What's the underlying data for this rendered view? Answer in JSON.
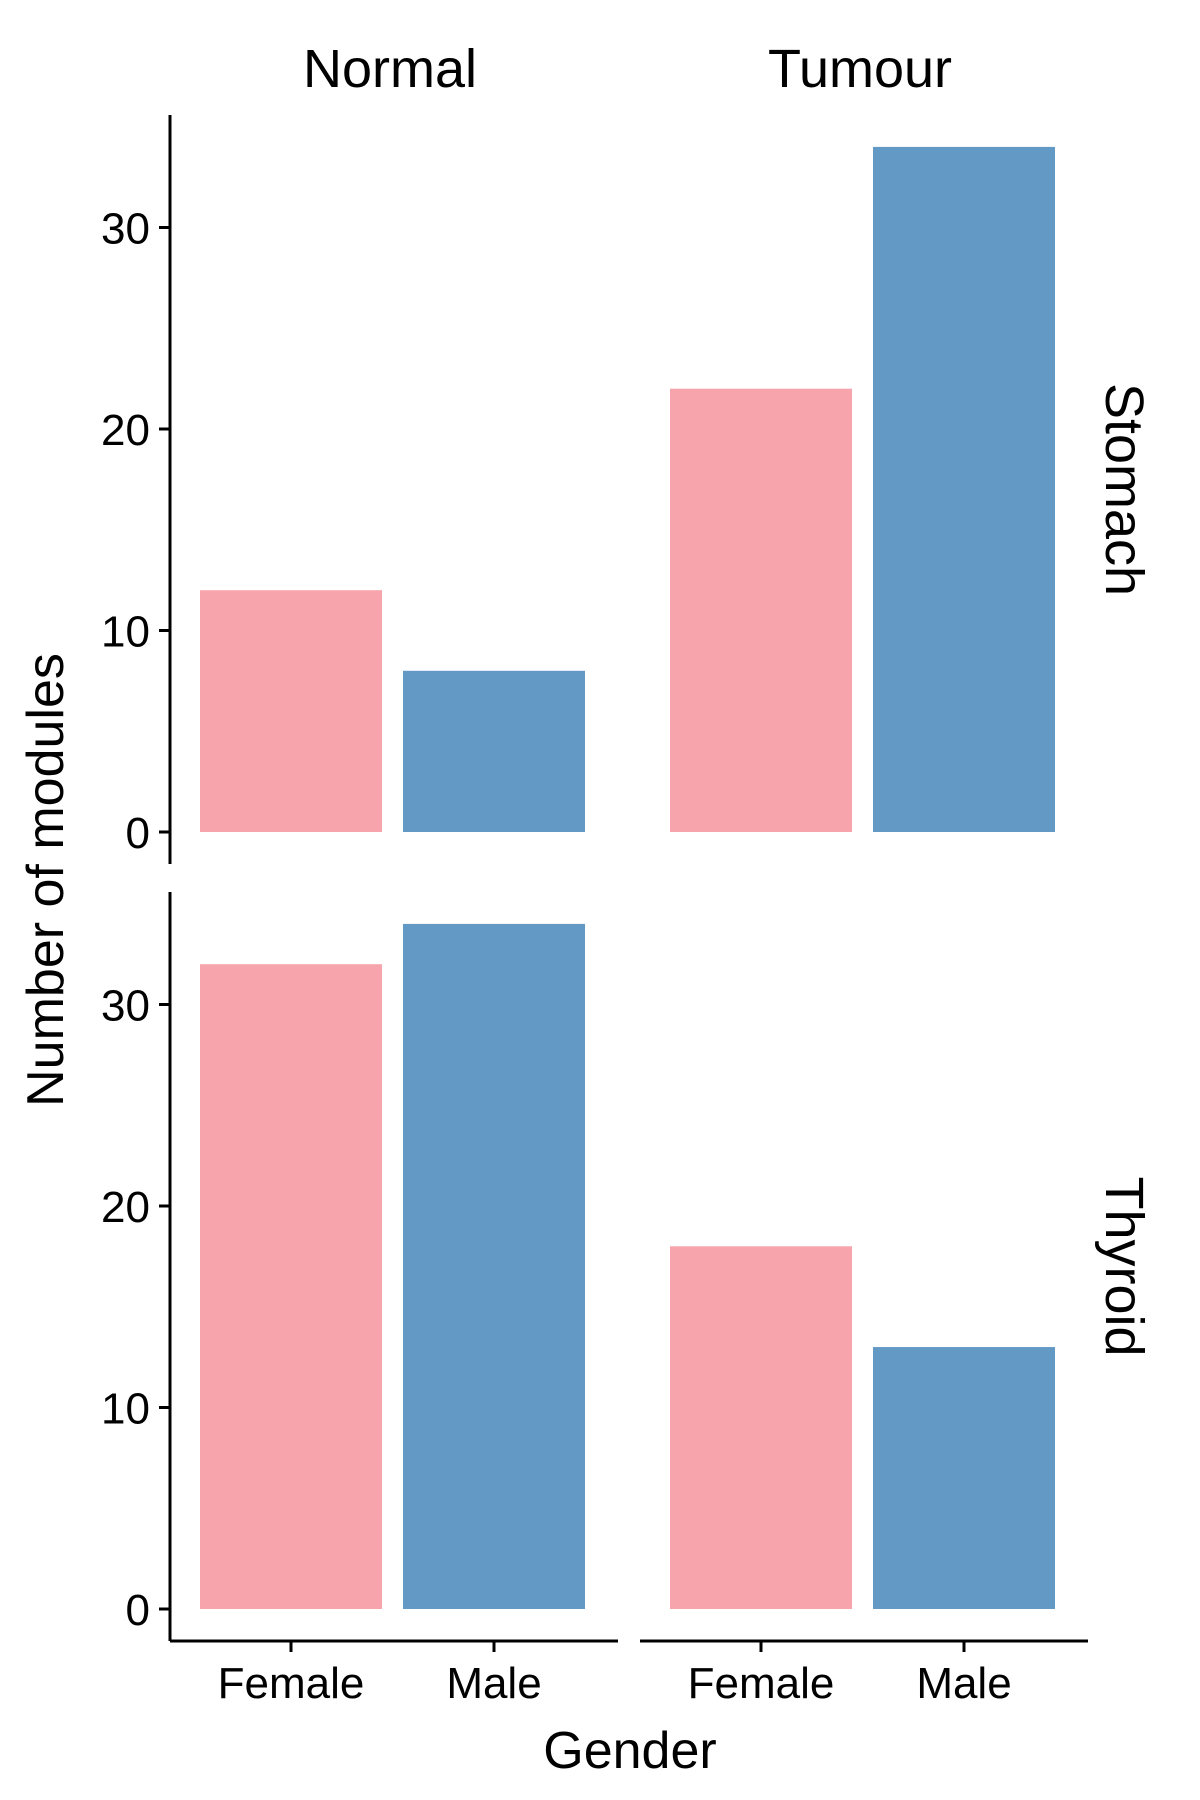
{
  "chart_data": {
    "type": "bar",
    "layout": "faceted-grid",
    "xlabel": "Gender",
    "ylabel": "Number of modules",
    "categories": [
      "Female",
      "Male"
    ],
    "facet_cols": [
      "Normal",
      "Tumour"
    ],
    "facet_rows": [
      "Stomach",
      "Thyroid"
    ],
    "ylim": [
      0,
      35.5
    ],
    "yticks": [
      0,
      10,
      20,
      30
    ],
    "grid": false,
    "legend": "none",
    "colors": {
      "Female": "#F7A4AC",
      "Male": "#6399C5"
    },
    "panels": [
      {
        "row": "Stomach",
        "col": "Normal",
        "values": [
          12,
          8
        ]
      },
      {
        "row": "Stomach",
        "col": "Tumour",
        "values": [
          22,
          34
        ]
      },
      {
        "row": "Thyroid",
        "col": "Normal",
        "values": [
          32,
          34
        ]
      },
      {
        "row": "Thyroid",
        "col": "Tumour",
        "values": [
          18,
          13
        ]
      }
    ]
  }
}
